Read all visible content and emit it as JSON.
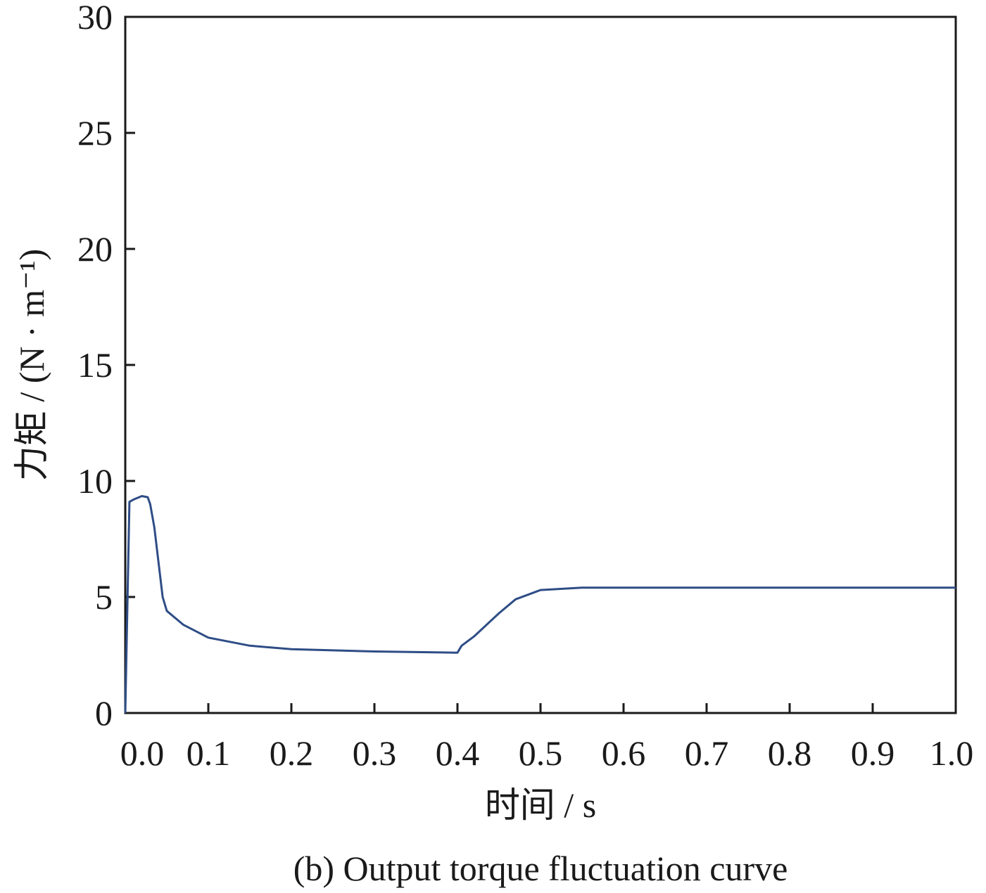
{
  "chart_data": {
    "type": "line",
    "xlabel": "时间 / s",
    "ylabel": "力矩 / (N · m⁻¹)",
    "caption": "(b) Output torque fluctuation curve",
    "x": [
      0,
      0.005,
      0.01,
      0.02,
      0.027,
      0.03,
      0.035,
      0.04,
      0.045,
      0.05,
      0.07,
      0.1,
      0.15,
      0.2,
      0.3,
      0.4,
      0.405,
      0.42,
      0.45,
      0.47,
      0.5,
      0.55,
      0.7,
      1.0
    ],
    "series": [
      {
        "name": "torque",
        "color": "#2e4d86",
        "values": [
          0,
          9.1,
          9.2,
          9.35,
          9.3,
          9.0,
          8.0,
          6.5,
          5.0,
          4.4,
          3.8,
          3.25,
          2.9,
          2.75,
          2.65,
          2.6,
          2.9,
          3.3,
          4.3,
          4.9,
          5.3,
          5.4,
          5.4,
          5.4
        ]
      }
    ],
    "xlim": [
      0,
      1
    ],
    "ylim": [
      0,
      30
    ],
    "xticks": [
      {
        "value": 0,
        "label": "0.0"
      },
      0.1,
      0.2,
      0.3,
      0.4,
      0.5,
      0.6,
      0.7,
      0.8,
      0.9,
      {
        "value": 1,
        "label": "1.0"
      }
    ],
    "yticks": [
      0,
      5,
      10,
      15,
      20,
      25,
      30
    ],
    "grid": false
  }
}
